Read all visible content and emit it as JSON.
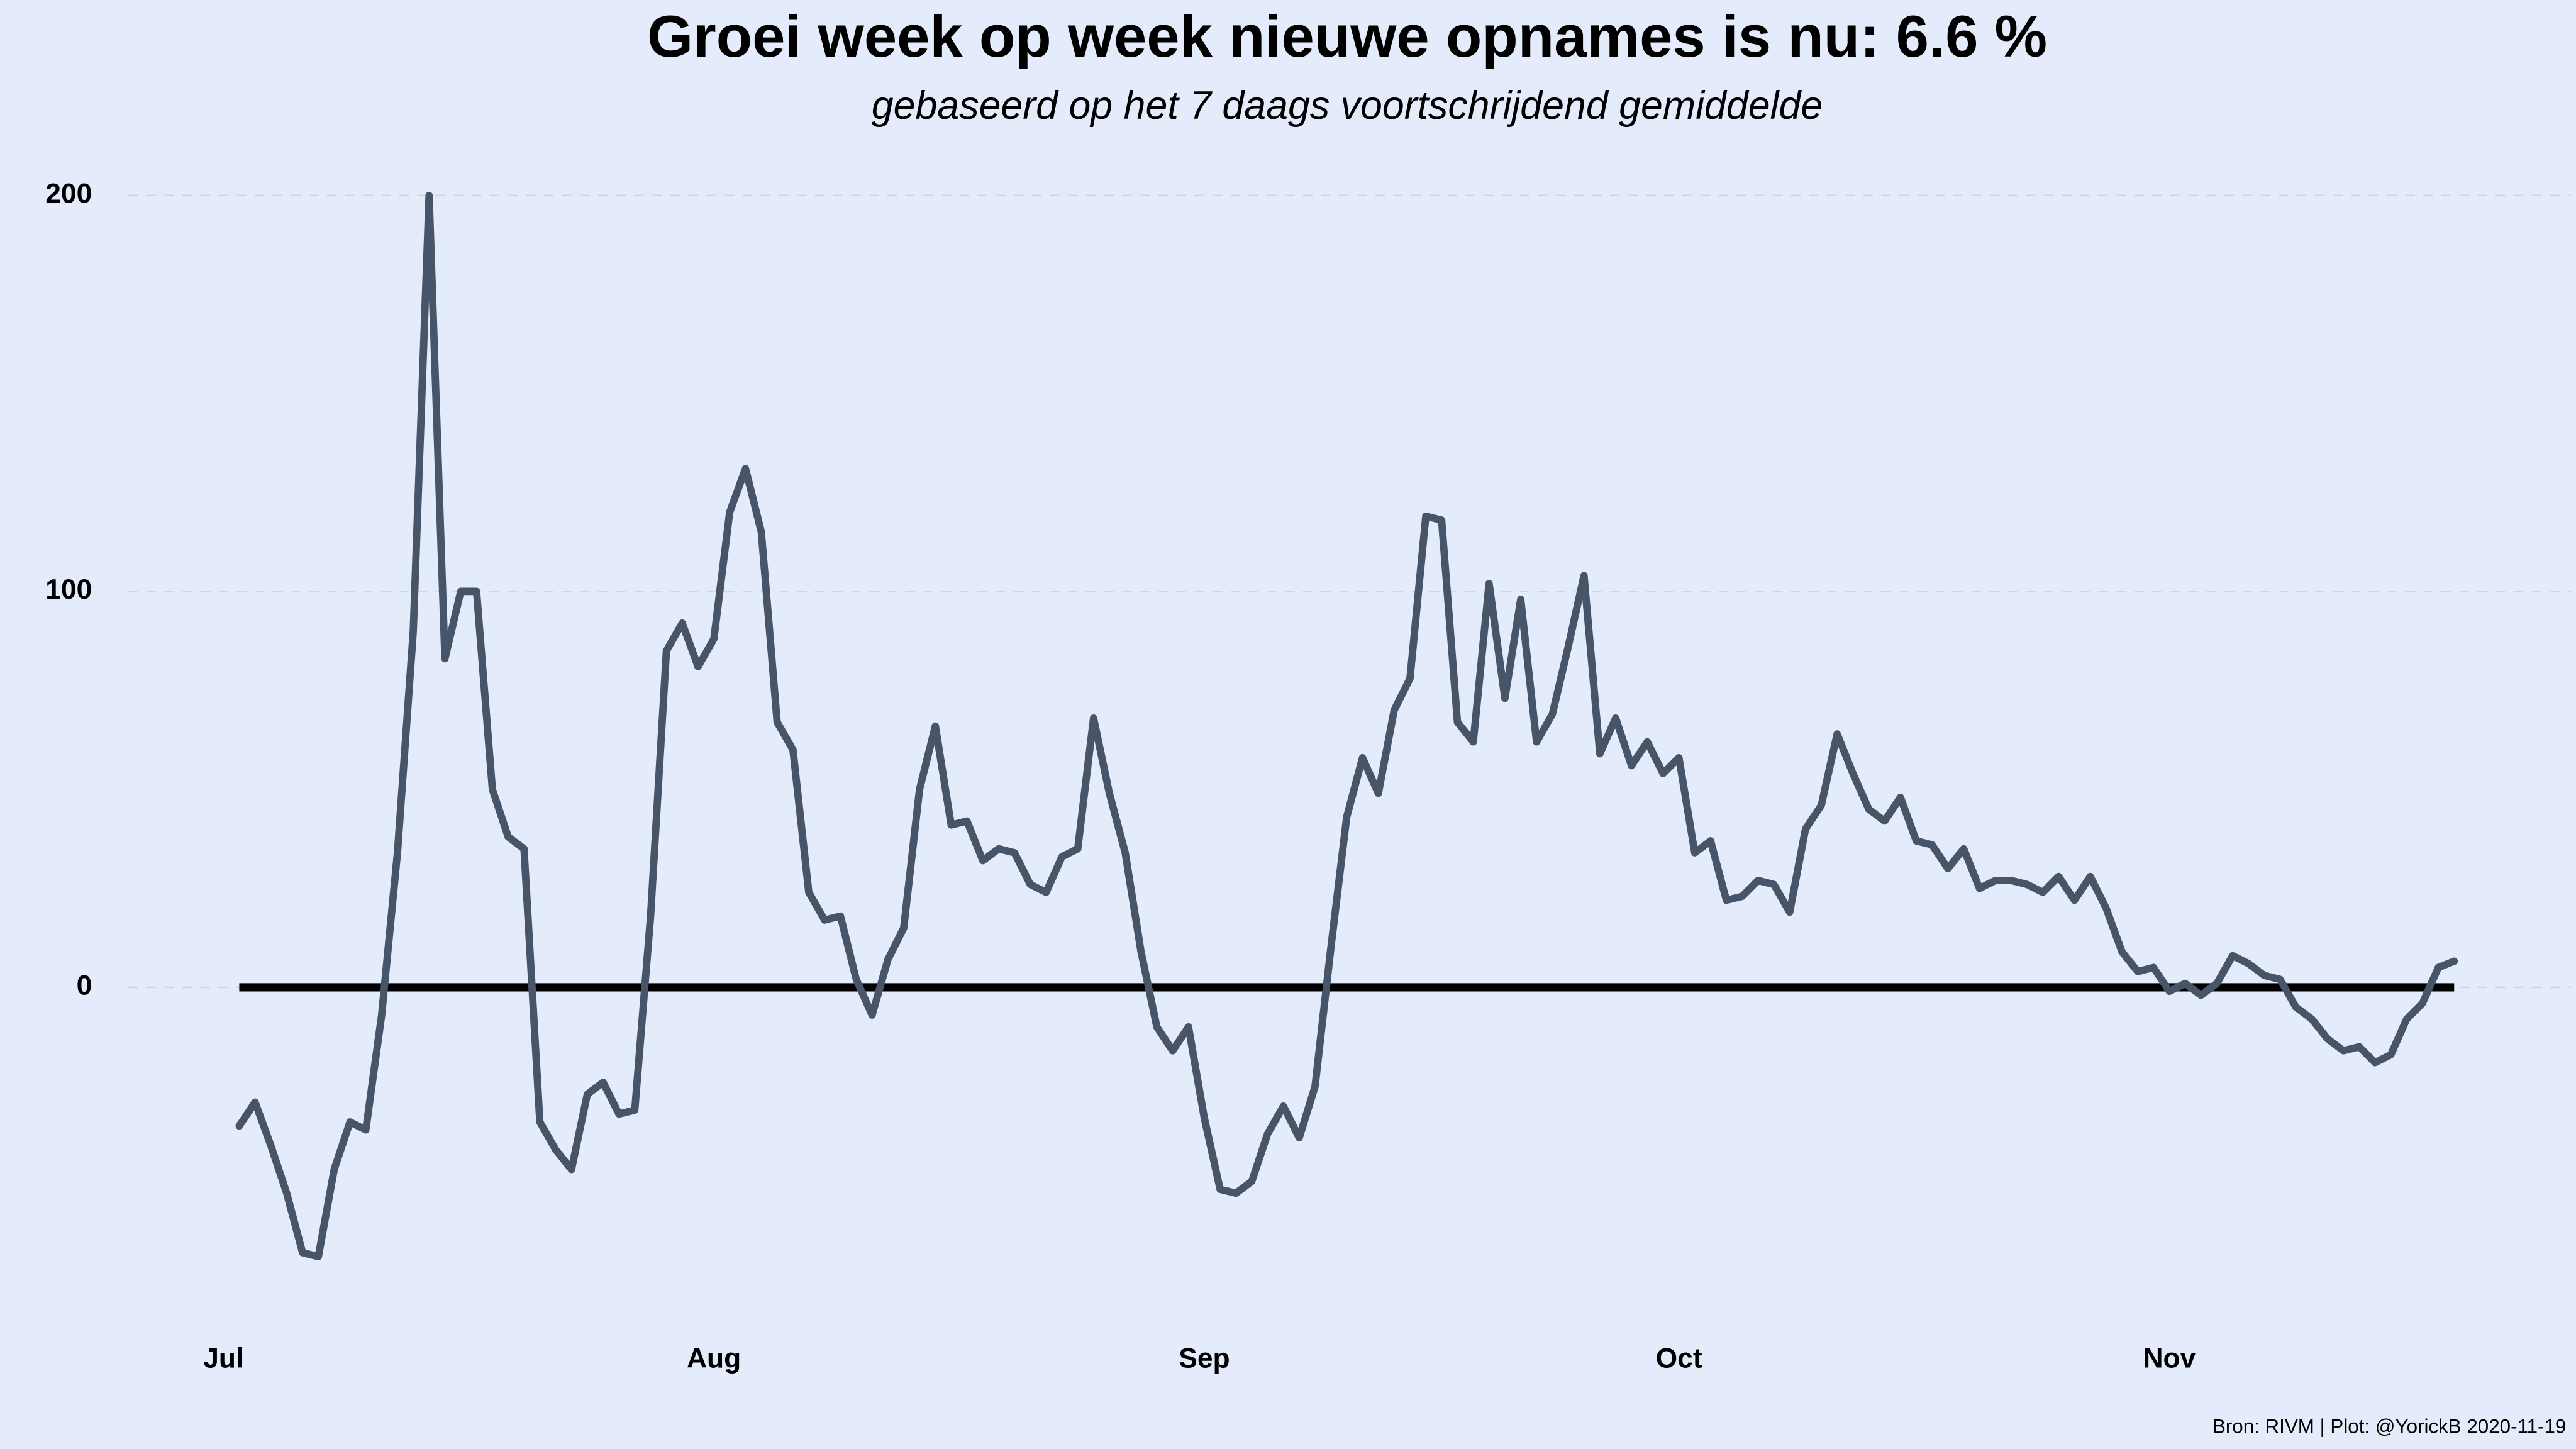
{
  "chart_data": {
    "type": "line",
    "title": "Groei week op week nieuwe opnames is nu:  6.6 %",
    "subtitle": "gebaseerd op het 7 daags voortschrijdend gemiddelde",
    "caption": "Bron: RIVM | Plot: @YorickB  2020-11-19",
    "categories": [
      "Jul",
      null,
      null,
      null,
      null,
      null,
      null,
      null,
      null,
      null,
      null,
      null,
      null,
      null,
      null,
      null,
      null,
      null,
      null,
      null,
      null,
      null,
      null,
      null,
      null,
      null,
      null,
      null,
      null,
      null,
      null,
      "Aug",
      null,
      null,
      null,
      null,
      null,
      null,
      null,
      null,
      null,
      null,
      null,
      null,
      null,
      null,
      null,
      null,
      null,
      null,
      null,
      null,
      null,
      null,
      null,
      null,
      null,
      null,
      null,
      null,
      null,
      null,
      "Sep",
      null,
      null,
      null,
      null,
      null,
      null,
      null,
      null,
      null,
      null,
      null,
      null,
      null,
      null,
      null,
      null,
      null,
      null,
      null,
      null,
      null,
      null,
      null,
      null,
      null,
      null,
      null,
      null,
      null,
      "Oct",
      null,
      null,
      null,
      null,
      null,
      null,
      null,
      null,
      null,
      null,
      null,
      null,
      null,
      null,
      null,
      null,
      null,
      null,
      null,
      null,
      null,
      null,
      null,
      null,
      null,
      null,
      null,
      null,
      null,
      null,
      "Nov",
      null,
      null,
      null,
      null,
      null,
      null,
      null,
      null,
      null,
      null,
      null,
      null,
      null,
      null,
      null,
      null,
      null,
      null
    ],
    "series": [
      {
        "color": "#485468",
        "values": [
          null,
          -35,
          -29,
          -40,
          -52,
          -67,
          -68,
          -46,
          -34,
          -36,
          -7,
          34,
          90,
          200,
          83,
          100,
          100,
          50,
          38,
          35,
          -34,
          -41,
          -46,
          -27,
          -24,
          -32,
          -31,
          18,
          85,
          92,
          81,
          88,
          120,
          131,
          115,
          67,
          60,
          24,
          17,
          18,
          2,
          -7,
          7,
          15,
          50,
          66,
          41,
          42,
          32,
          35,
          34,
          26,
          24,
          33,
          35,
          68,
          49,
          34,
          9,
          -10,
          -16,
          -10,
          -33,
          -51,
          -52,
          -49,
          -37,
          -30,
          -38,
          -25,
          10,
          43,
          58,
          49,
          70,
          78,
          119,
          118,
          67,
          62,
          102,
          73,
          98,
          62,
          69,
          86,
          104,
          59,
          68,
          56,
          62,
          54,
          58,
          34,
          37,
          22,
          23,
          27,
          26,
          19,
          40,
          46,
          64,
          54,
          45,
          42,
          48,
          37,
          36,
          30,
          35,
          25,
          27,
          27,
          26,
          24,
          28,
          22,
          28,
          20,
          9,
          4,
          5,
          -1,
          1,
          -2,
          1,
          8,
          6,
          3,
          2,
          -5,
          -8,
          -13,
          -16,
          -15,
          -19,
          -17,
          -8,
          -4,
          5,
          6.6
        ]
      }
    ],
    "hline": 0,
    "ylim": [
      -85,
      210
    ],
    "yticks": [
      0,
      100,
      200
    ],
    "grid": true
  }
}
